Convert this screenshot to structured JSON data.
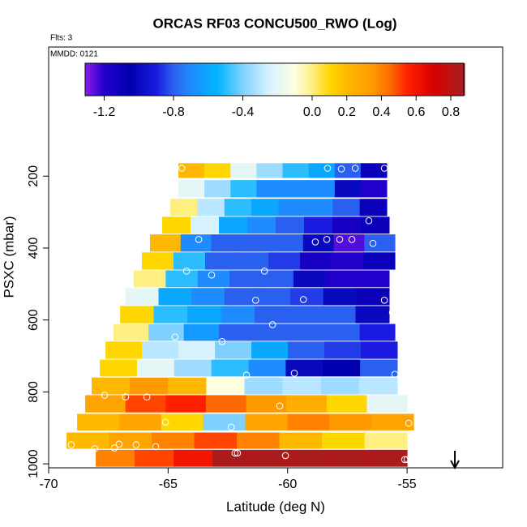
{
  "chart_data": {
    "type": "heatmap",
    "title": "ORCAS RF03 CONCU500_RWO (Log)",
    "subtitle": "Flts: 3",
    "annotation": "MMDD: 0121",
    "x_label": "Latitude (deg N)",
    "y_label": "PSXC (mbar)",
    "xlim": [
      -70,
      -51
    ],
    "xticks": [
      -70,
      -65,
      -60,
      -55
    ],
    "ylim": [
      1011,
      -159
    ],
    "yticks": [
      200,
      400,
      600,
      800,
      1000
    ],
    "colorbar_lim": [
      -1.31,
      0.875
    ],
    "colorbar_ticks": [
      -1.2,
      -0.8,
      -0.4,
      {
        "value": 0,
        "label": "0.0"
      },
      0.2,
      0.4,
      0.6,
      0.8
    ],
    "colorscale": [
      [
        -1.31,
        "#8b1ce8"
      ],
      [
        -1.2,
        "#2200cc"
      ],
      [
        -1.05,
        "#0000b0"
      ],
      [
        -0.9,
        "#1a1ae0"
      ],
      [
        -0.8,
        "#2a60f0"
      ],
      [
        -0.7,
        "#1e8cff"
      ],
      [
        -0.55,
        "#00b4ff"
      ],
      [
        -0.4,
        "#80d0ff"
      ],
      [
        -0.25,
        "#d6f2ff"
      ],
      [
        -0.1,
        "#ffffe0"
      ],
      [
        0,
        "#ffef80"
      ],
      [
        0.1,
        "#ffd700"
      ],
      [
        0.2,
        "#ffb800"
      ],
      [
        0.35,
        "#ff9900"
      ],
      [
        0.45,
        "#ff6a00"
      ],
      [
        0.55,
        "#ff2000"
      ],
      [
        0.7,
        "#d80000"
      ],
      [
        0.875,
        "#a52020"
      ]
    ],
    "rows": [
      {
        "p": [
          164,
          205
        ],
        "lat": [
          -64.57,
          -55.85
        ],
        "values": [
          0.2,
          0.1,
          -0.2,
          -0.35,
          -0.5,
          -0.6,
          -0.8,
          -1.1
        ]
      },
      {
        "p": [
          211,
          259
        ],
        "lat": [
          -64.57,
          -55.85
        ],
        "values": [
          -0.2,
          -0.35,
          -0.5,
          -0.7,
          -0.7,
          -0.7,
          -1.0,
          -1.2
        ]
      },
      {
        "p": [
          263,
          311
        ],
        "lat": [
          -64.91,
          -55.85
        ],
        "values": [
          0.0,
          -0.3,
          -0.5,
          -0.6,
          -0.7,
          -0.7,
          -0.8,
          -1.1
        ]
      },
      {
        "p": [
          313,
          360
        ],
        "lat": [
          -65.25,
          -55.75
        ],
        "values": [
          0.1,
          -0.25,
          -0.6,
          -0.7,
          -0.8,
          -0.9,
          -1.15,
          -1.1
        ]
      },
      {
        "p": [
          362,
          410
        ],
        "lat": [
          -65.76,
          -55.51
        ],
        "values": [
          0.2,
          -0.7,
          -0.8,
          -0.8,
          -0.8,
          -1.0,
          -1.25,
          -0.8
        ]
      },
      {
        "p": [
          412,
          460
        ],
        "lat": [
          -66.1,
          -55.51
        ],
        "values": [
          0.1,
          -0.5,
          -0.8,
          -0.8,
          -0.85,
          -1.15,
          -1.2,
          -1.1
        ]
      },
      {
        "p": [
          462,
          509
        ],
        "lat": [
          -66.44,
          -55.75
        ],
        "values": [
          0.0,
          -0.5,
          -0.7,
          -0.8,
          -0.8,
          -1.0,
          -1.2,
          -1.2
        ]
      },
      {
        "p": [
          511,
          559
        ],
        "lat": [
          -66.78,
          -55.75
        ],
        "values": [
          -0.2,
          -0.6,
          -0.7,
          -0.8,
          -0.8,
          -0.85,
          -1.0,
          -1.1
        ]
      },
      {
        "p": [
          561,
          609
        ],
        "lat": [
          -67.01,
          -55.75
        ],
        "values": [
          0.1,
          -0.5,
          -0.6,
          -0.7,
          -0.8,
          -0.8,
          -0.8,
          -1.0
        ]
      },
      {
        "p": [
          611,
          658
        ],
        "lat": [
          -67.29,
          -55.51
        ],
        "values": [
          0.0,
          -0.4,
          -0.65,
          -0.8,
          -0.8,
          -0.8,
          -0.8,
          -0.9
        ]
      },
      {
        "p": [
          660,
          708
        ],
        "lat": [
          -67.62,
          -55.41
        ],
        "values": [
          0.1,
          -0.3,
          -0.25,
          -0.4,
          -0.6,
          -0.8,
          -0.85,
          -0.9
        ]
      },
      {
        "p": [
          710,
          757
        ],
        "lat": [
          -67.86,
          -55.41
        ],
        "values": [
          0.1,
          -0.2,
          -0.35,
          -0.5,
          -0.7,
          -1.0,
          -1.05,
          -0.8
        ]
      },
      {
        "p": [
          760,
          807
        ],
        "lat": [
          -68.2,
          -55.41
        ],
        "values": [
          0.2,
          0.35,
          0.2,
          -0.1,
          -0.35,
          -0.3,
          -0.35,
          -0.3
        ]
      },
      {
        "p": [
          809,
          857
        ],
        "lat": [
          -68.47,
          -55.0
        ],
        "values": [
          0.3,
          0.5,
          0.55,
          0.45,
          0.35,
          0.25,
          0.1,
          -0.2
        ]
      },
      {
        "p": [
          861,
          907
        ],
        "lat": [
          -68.81,
          -54.73
        ],
        "values": [
          0.2,
          0.3,
          0.1,
          -0.4,
          0.3,
          0.4,
          0.35,
          0.3
        ]
      },
      {
        "p": [
          913,
          958
        ],
        "lat": [
          -69.25,
          -55.0
        ],
        "values": [
          0.2,
          0.3,
          0.4,
          0.5,
          0.4,
          0.2,
          0.1,
          0.0
        ]
      },
      {
        "p": [
          961,
          1008
        ],
        "lat": [
          -68.03,
          -55.0
        ],
        "values": [
          0.4,
          0.5,
          0.6,
          0.85,
          0.85,
          0.85,
          0.85,
          0.85
        ]
      }
    ],
    "points": {
      "lat": [
        -64.43,
        -58.33,
        -57.75,
        -57.17,
        -55.95,
        -56.6,
        -63.72,
        -58.84,
        -58.36,
        -57.82,
        -57.31,
        -56.43,
        -64.23,
        -63.18,
        -60.97,
        -61.34,
        -59.34,
        -55.95,
        -55.61,
        -60.63,
        -64.71,
        -62.74,
        -61.72,
        -59.72,
        -55.51,
        -67.66,
        -66.78,
        -65.89,
        -60.33,
        -65.11,
        -62.36,
        -54.93,
        -69.05,
        -68.07,
        -67.05,
        -67.25,
        -66.34,
        -65.52,
        -62.2,
        -62.1,
        -60.09,
        -55.1,
        -55.0
      ],
      "p": [
        178,
        178,
        180,
        178,
        178,
        324,
        376,
        383,
        376,
        376,
        376,
        387,
        464,
        475,
        464,
        545,
        543,
        545,
        579,
        613,
        647,
        660,
        753,
        748,
        751,
        809,
        814,
        814,
        839,
        884,
        898,
        887,
        947,
        958,
        945,
        956,
        947,
        952,
        970,
        970,
        977,
        988,
        988
      ]
    },
    "marker_x": -53.0
  }
}
